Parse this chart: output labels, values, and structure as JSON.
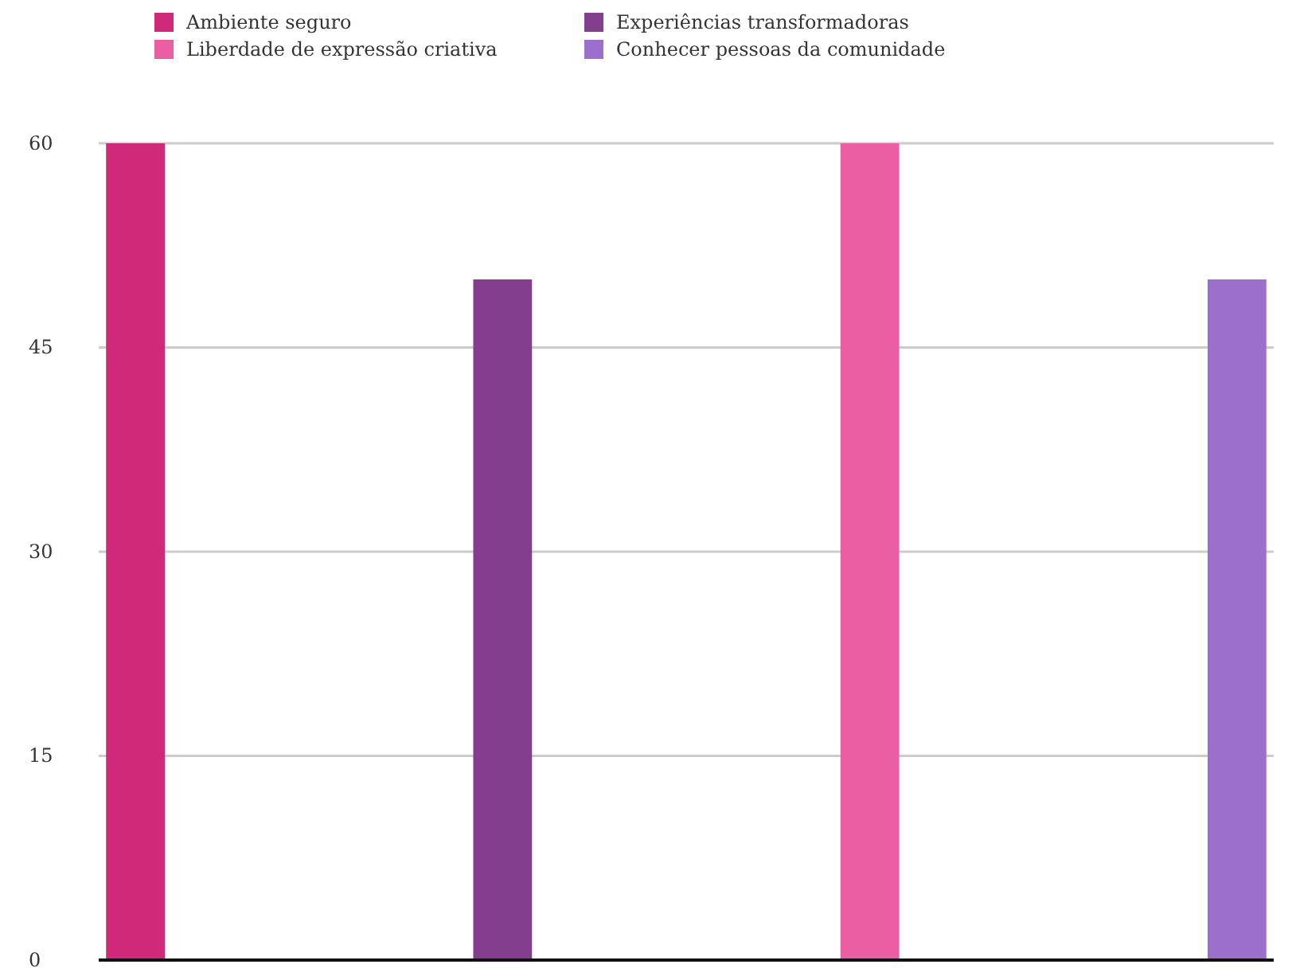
{
  "chart_data": {
    "type": "bar",
    "categories": [
      null
    ],
    "series": [
      {
        "name": "Ambiente seguro",
        "color": "#cf2a7a",
        "values": [
          60
        ]
      },
      {
        "name": "Experiências transformadoras",
        "color": "#843e8e",
        "values": [
          50
        ]
      },
      {
        "name": "Liberdade de expressão criativa",
        "color": "#ec5ea3",
        "values": [
          60
        ]
      },
      {
        "name": "Conhecer pessoas da comunidade",
        "color": "#9d6fcd",
        "values": [
          50
        ]
      }
    ],
    "ylim": [
      0,
      60
    ],
    "yticks": [
      0,
      15,
      30,
      45,
      60
    ],
    "grid": "y",
    "legend": "top"
  }
}
